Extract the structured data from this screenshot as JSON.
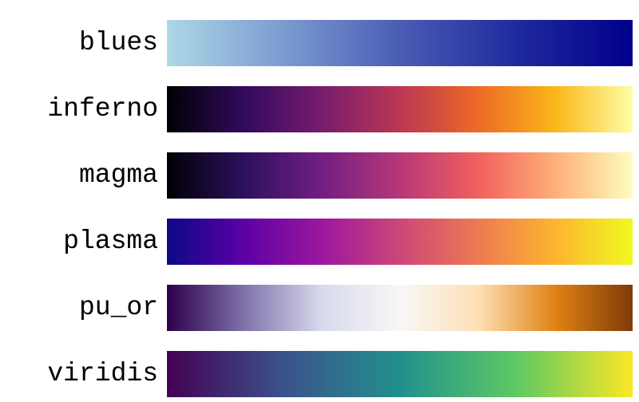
{
  "colormaps": [
    {
      "name": "blues",
      "colors": [
        "#add8e6",
        "#7b9bcf",
        "#4a5db5",
        "#1f2a9e",
        "#00008b"
      ]
    },
    {
      "name": "inferno",
      "colors": [
        "#000004",
        "#320a5e",
        "#781c6d",
        "#bb3754",
        "#ed6925",
        "#fbb61a",
        "#fcffa4"
      ]
    },
    {
      "name": "magma",
      "colors": [
        "#000004",
        "#2c115f",
        "#721f81",
        "#b73779",
        "#f1605d",
        "#feaf78",
        "#fcfdbf"
      ]
    },
    {
      "name": "plasma",
      "colors": [
        "#0d0887",
        "#5c01a6",
        "#9c179e",
        "#cc4778",
        "#ed7953",
        "#fdb42f",
        "#f0f921"
      ]
    },
    {
      "name": "pu_or",
      "colors": [
        "#2d004b",
        "#8073ac",
        "#d8daeb",
        "#f7f7f7",
        "#fee0b6",
        "#e08214",
        "#7f3b08"
      ]
    },
    {
      "name": "viridis",
      "colors": [
        "#440154",
        "#3b528b",
        "#21908d",
        "#5dc963",
        "#fde725"
      ]
    }
  ]
}
